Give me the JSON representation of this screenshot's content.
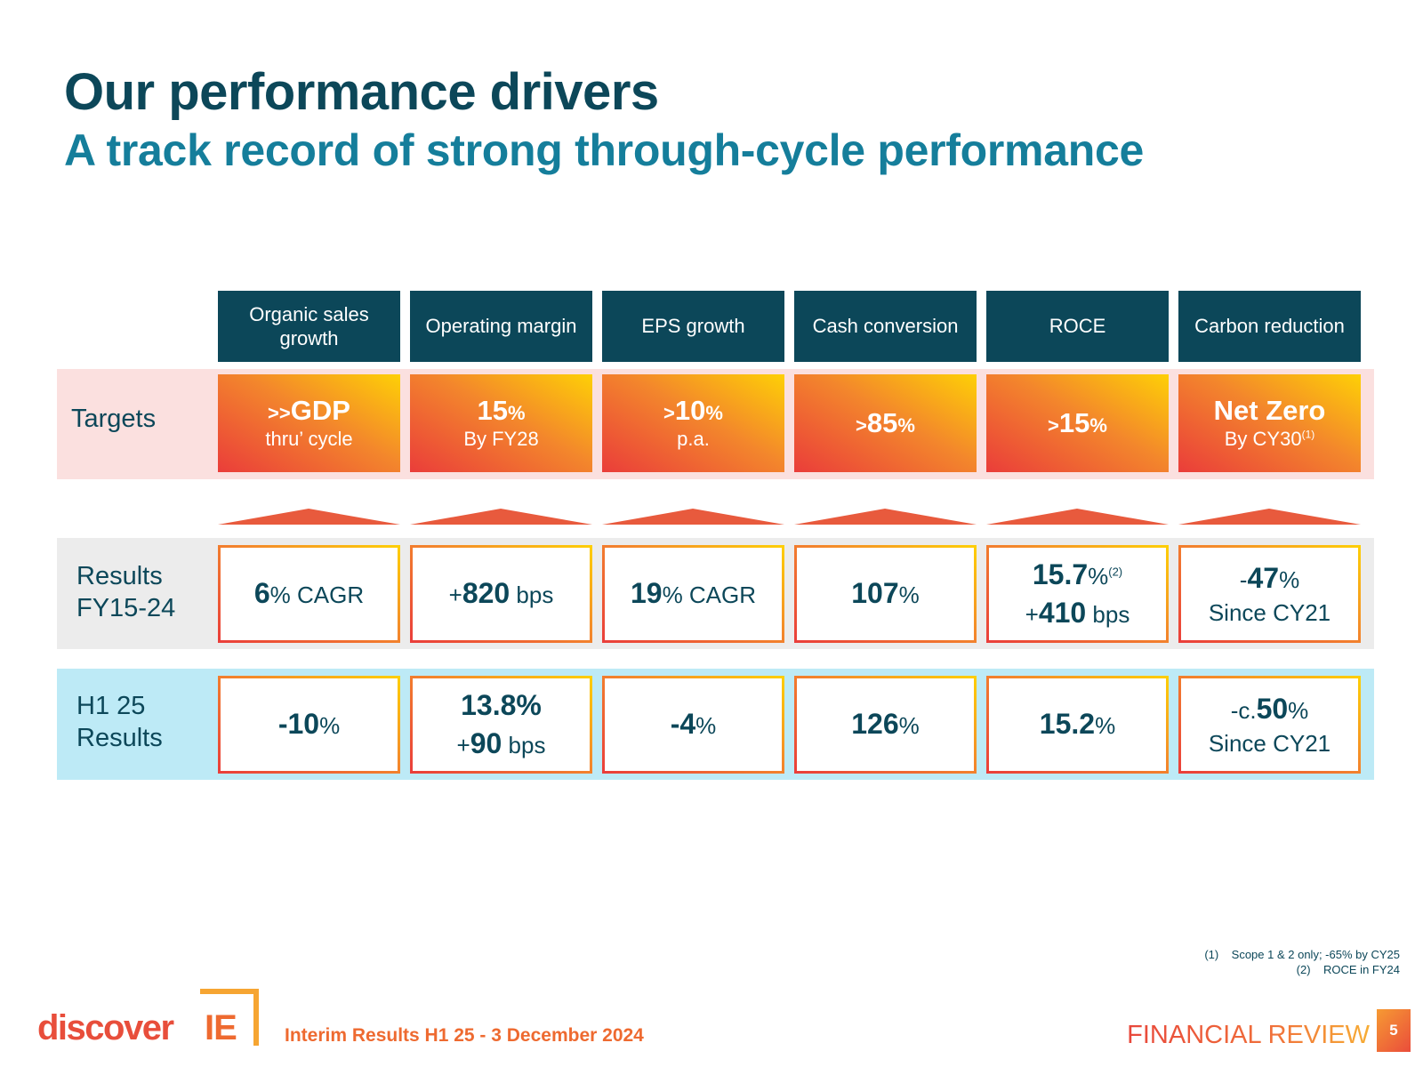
{
  "title": "Our performance drivers",
  "subtitle": "A track record of strong through-cycle performance",
  "columns": [
    "Organic sales growth",
    "Operating margin",
    "EPS growth",
    "Cash conversion",
    "ROCE",
    "Carbon reduction"
  ],
  "row_labels": {
    "targets": "Targets",
    "results_line1": "Results",
    "results_line2": "FY15-24",
    "h1_line1": "H1 25",
    "h1_line2": "Results"
  },
  "targets": [
    {
      "pre": ">>",
      "main": "GDP",
      "unit": "",
      "sub": "thru’ cycle",
      "note": ""
    },
    {
      "pre": "",
      "main": "15",
      "unit": "%",
      "sub": "By FY28",
      "note": ""
    },
    {
      "pre": ">",
      "main": "10",
      "unit": "%",
      "sub": "p.a.",
      "note": ""
    },
    {
      "pre": ">",
      "main": "85",
      "unit": "%",
      "sub": "",
      "note": ""
    },
    {
      "pre": ">",
      "main": "15",
      "unit": "%",
      "sub": "",
      "note": ""
    },
    {
      "pre": "",
      "main": "Net Zero",
      "unit": "",
      "sub": "By CY30",
      "note": "(1)"
    }
  ],
  "results": [
    {
      "l1_pre": "",
      "l1_bold": "6",
      "l1_post": "% CAGR",
      "l1_note": "",
      "l2_pre": "",
      "l2_bold": "",
      "l2_post": ""
    },
    {
      "l1_pre": "+",
      "l1_bold": "820",
      "l1_post": " bps",
      "l1_note": "",
      "l2_pre": "",
      "l2_bold": "",
      "l2_post": ""
    },
    {
      "l1_pre": "",
      "l1_bold": "19",
      "l1_post": "% CAGR",
      "l1_note": "",
      "l2_pre": "",
      "l2_bold": "",
      "l2_post": ""
    },
    {
      "l1_pre": "",
      "l1_bold": "107",
      "l1_post": "%",
      "l1_note": "",
      "l2_pre": "",
      "l2_bold": "",
      "l2_post": ""
    },
    {
      "l1_pre": "",
      "l1_bold": "15.7",
      "l1_post": "%",
      "l1_note": "(2)",
      "l2_pre": "+",
      "l2_bold": "410",
      "l2_post": " bps"
    },
    {
      "l1_pre": "-",
      "l1_bold": "47",
      "l1_post": "%",
      "l1_note": "",
      "l2_pre": "Since CY21",
      "l2_bold": "",
      "l2_post": ""
    }
  ],
  "h1": [
    {
      "l1_pre": "",
      "l1_bold": "-10",
      "l1_post": "%",
      "l1_note": "",
      "l2_pre": "",
      "l2_bold": "",
      "l2_post": ""
    },
    {
      "l1_pre": "",
      "l1_bold": "13.8%",
      "l1_post": "",
      "l1_note": "",
      "l2_pre": "+",
      "l2_bold": "90",
      "l2_post": " bps"
    },
    {
      "l1_pre": "",
      "l1_bold": "-4",
      "l1_post": "%",
      "l1_note": "",
      "l2_pre": "",
      "l2_bold": "",
      "l2_post": ""
    },
    {
      "l1_pre": "",
      "l1_bold": "126",
      "l1_post": "%",
      "l1_note": "",
      "l2_pre": "",
      "l2_bold": "",
      "l2_post": ""
    },
    {
      "l1_pre": "",
      "l1_bold": "15.2",
      "l1_post": "%",
      "l1_note": "",
      "l2_pre": "",
      "l2_bold": "",
      "l2_post": ""
    },
    {
      "l1_pre": "-c.",
      "l1_bold": "50",
      "l1_post": "%",
      "l1_note": "",
      "l2_pre": "Since CY21",
      "l2_bold": "",
      "l2_post": ""
    }
  ],
  "footnotes": [
    {
      "num": "(1)",
      "text": "Scope 1 & 2 only; -65% by CY25"
    },
    {
      "num": "(2)",
      "text": "ROCE in FY24"
    }
  ],
  "footer": {
    "logo_main": "discover",
    "logo_suffix": "IE",
    "document": "Interim Results H1 25 - 3 December 2024",
    "section": "FINANCIAL REVIEW",
    "page": "5"
  },
  "colors": {
    "navy": "#0c4759",
    "teal": "#157e9b",
    "orange": "#ee6a30",
    "red": "#ea3d3a",
    "yellow": "#fed006"
  }
}
